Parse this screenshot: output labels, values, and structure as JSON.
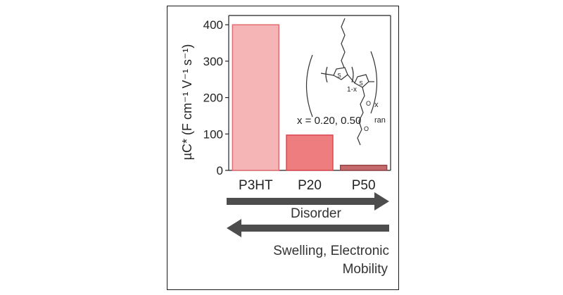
{
  "chart_data": {
    "type": "bar",
    "categories": [
      "P3HT",
      "P20",
      "P50"
    ],
    "values": [
      400,
      97,
      14
    ],
    "colors": [
      "#f5b5b7",
      "#ee7d80",
      "#c56a6c"
    ],
    "edge_colors": [
      "#e26c70",
      "#d9484e",
      "#9a4446"
    ],
    "ylabel": "µC* (F cm⁻¹ V⁻¹ s⁻¹)",
    "ylim": [
      0,
      410
    ],
    "yticks": [
      0,
      100,
      200,
      300,
      400
    ]
  },
  "structure": {
    "label": "x = 0.20, 0.50",
    "subscript_x": "x",
    "subscript_1x": "1-x",
    "subscript_ran": "ran",
    "atom_s": "S",
    "atom_o": "O"
  },
  "arrows": {
    "disorder_label": "Disorder",
    "swelling_label_1": "Swelling, Electronic",
    "swelling_label_2": "Mobility",
    "color": "#4d4d4d"
  }
}
